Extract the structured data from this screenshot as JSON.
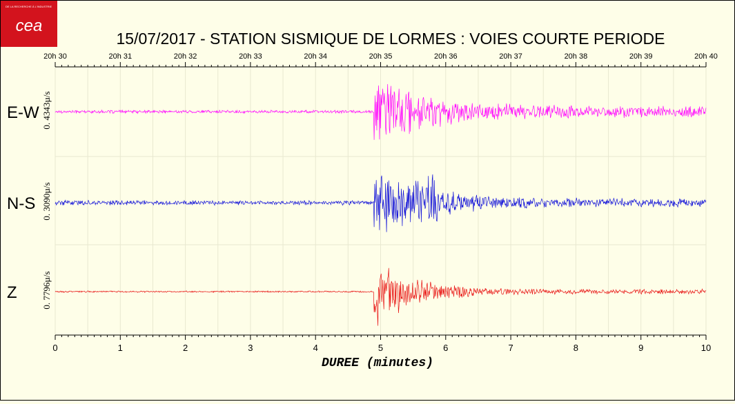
{
  "header": {
    "logo_text": "cea",
    "logo_tagline": "DE LA RECHERCHE À L'INDUSTRIE",
    "title": "15/07/2017  -  STATION SISMIQUE DE LORMES : VOIES COURTE PERIODE"
  },
  "colors": {
    "background": "#fefee8",
    "logo": "#d3131d",
    "ew": "#ff00ff",
    "ns": "#1010d8",
    "z": "#e81010"
  },
  "chart_data": {
    "type": "line",
    "title": "15/07/2017  -  STATION SISMIQUE DE LORMES : VOIES COURTE PERIODE",
    "xlabel": "DUREE (minutes)",
    "xlim": [
      0,
      10
    ],
    "x_ticks": [
      "0",
      "1",
      "2",
      "3",
      "4",
      "5",
      "6",
      "7",
      "8",
      "9",
      "10"
    ],
    "top_axis_ticks": [
      "20h 30",
      "20h 31",
      "20h 32",
      "20h 33",
      "20h 34",
      "20h 35",
      "20h 36",
      "20h 37",
      "20h 38",
      "20h 39",
      "20h 40"
    ],
    "grid": true,
    "samples_per_minute": 120,
    "series": [
      {
        "name": "E-W",
        "scale_label": "0. 4343µ/s",
        "color": "#ff00ff",
        "onset_minute": 4.9,
        "peak_amplitude": 1.0,
        "pre_event_amplitude": 0.04,
        "coda_amplitude": 0.14
      },
      {
        "name": "N-S",
        "scale_label": "0. 3090µ/s",
        "color": "#1010d8",
        "onset_minute": 4.9,
        "peak_amplitude": 1.0,
        "pre_event_amplitude": 0.06,
        "coda_amplitude": 0.1
      },
      {
        "name": "Z",
        "scale_label": "0. 7796µ/s",
        "color": "#e81010",
        "onset_minute": 4.9,
        "peak_amplitude": 1.0,
        "pre_event_amplitude": 0.02,
        "coda_amplitude": 0.06
      }
    ]
  }
}
